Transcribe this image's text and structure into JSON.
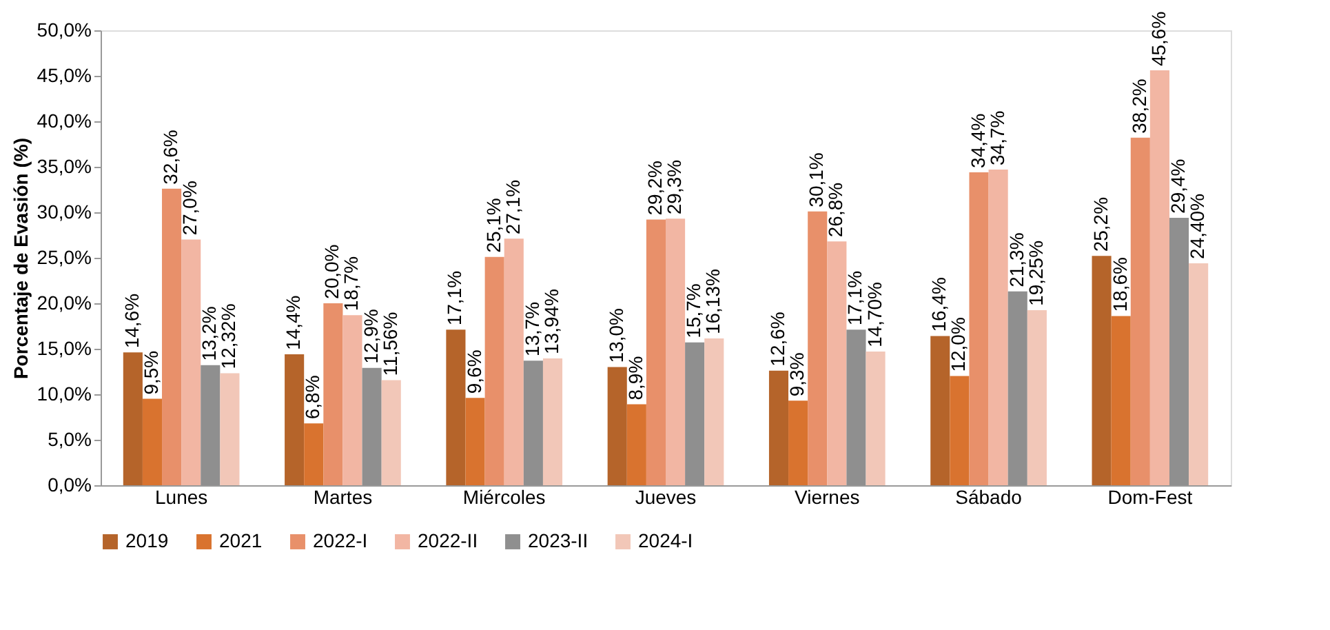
{
  "chart_data": {
    "type": "bar",
    "ylabel": "Porcentaje de Evasión (%)",
    "categories": [
      "Lunes",
      "Martes",
      "Miércoles",
      "Jueves",
      "Viernes",
      "Sábado",
      "Dom-Fest"
    ],
    "series": [
      {
        "name": "2019",
        "color": "#b5642a",
        "values": [
          14.6,
          14.4,
          17.1,
          13.0,
          12.6,
          16.4,
          25.2
        ],
        "value_labels": [
          "14,6%",
          "14,4%",
          "17,1%",
          "13,0%",
          "12,6%",
          "16,4%",
          "25,2%"
        ]
      },
      {
        "name": "2021",
        "color": "#d9732f",
        "values": [
          9.5,
          6.8,
          9.6,
          8.9,
          9.3,
          12.0,
          18.6
        ],
        "value_labels": [
          "9,5%",
          "6,8%",
          "9,6%",
          "8,9%",
          "9,3%",
          "12,0%",
          "18,6%"
        ]
      },
      {
        "name": "2022-I",
        "color": "#e8906a",
        "values": [
          32.6,
          20.0,
          25.1,
          29.2,
          30.1,
          34.4,
          38.2
        ],
        "value_labels": [
          "32,6%",
          "20,0%",
          "25,1%",
          "29,2%",
          "30,1%",
          "34,4%",
          "38,2%"
        ]
      },
      {
        "name": "2022-II",
        "color": "#f2b6a3",
        "values": [
          27.0,
          18.7,
          27.1,
          29.3,
          26.8,
          34.7,
          45.6
        ],
        "value_labels": [
          "27,0%",
          "18,7%",
          "27,1%",
          "29,3%",
          "26,8%",
          "34,7%",
          "45,6%"
        ]
      },
      {
        "name": "2023-II",
        "color": "#8f8f8f",
        "values": [
          13.2,
          12.9,
          13.7,
          15.7,
          17.1,
          21.3,
          29.4
        ],
        "value_labels": [
          "13,2%",
          "12,9%",
          "13,7%",
          "15,7%",
          "17,1%",
          "21,3%",
          "29,4%"
        ]
      },
      {
        "name": "2024-I",
        "color": "#f2c7b8",
        "values": [
          12.32,
          11.56,
          13.94,
          16.13,
          14.7,
          19.25,
          24.4
        ],
        "value_labels": [
          "12,32%",
          "11,56%",
          "13,94%",
          "16,13%",
          "14,70%",
          "19,25%",
          "24,40%"
        ]
      }
    ],
    "ylim": [
      0,
      50
    ],
    "yticks": [
      {
        "value": 0,
        "label": "0,0%"
      },
      {
        "value": 5,
        "label": "5,0%"
      },
      {
        "value": 10,
        "label": "10,0%"
      },
      {
        "value": 15,
        "label": "15,0%"
      },
      {
        "value": 20,
        "label": "20,0%"
      },
      {
        "value": 25,
        "label": "25,0%"
      },
      {
        "value": 30,
        "label": "30,0%"
      },
      {
        "value": 35,
        "label": "35,0%"
      },
      {
        "value": 40,
        "label": "40,0%"
      },
      {
        "value": 45,
        "label": "45,0%"
      },
      {
        "value": 50,
        "label": "50,0%"
      }
    ],
    "grid": false,
    "legend": "bottom"
  }
}
